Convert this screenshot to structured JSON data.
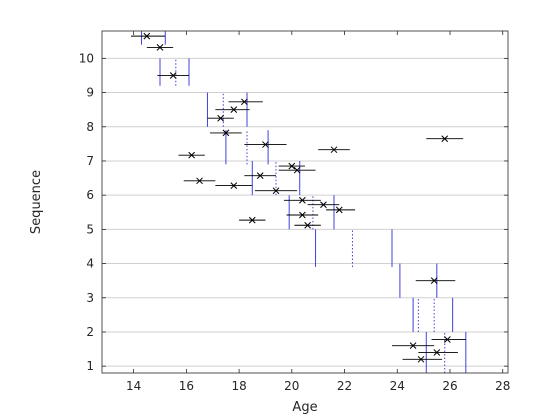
{
  "chart_data": {
    "type": "scatter",
    "xlabel": "Age",
    "ylabel": "Sequence",
    "xlim": [
      12.8,
      28.2
    ],
    "ylim": [
      0.8,
      10.8
    ],
    "xticks": [
      "14",
      "16",
      "18",
      "20",
      "22",
      "24",
      "26",
      "28"
    ],
    "yticks": [
      "1",
      "2",
      "3",
      "4",
      "5",
      "6",
      "7",
      "8",
      "9",
      "10"
    ],
    "grid": "horizontal",
    "colors": {
      "points": "#000000",
      "intervals": "#4040dd",
      "grid": "#d0d0d0",
      "axis": "#262626"
    },
    "points": [
      {
        "x": 14.5,
        "y": 10.65,
        "xerr": [
          13.9,
          15.2
        ]
      },
      {
        "x": 15.0,
        "y": 10.32,
        "xerr": [
          14.5,
          15.5
        ]
      },
      {
        "x": 15.5,
        "y": 9.5,
        "xerr": [
          14.9,
          16.1
        ]
      },
      {
        "x": 18.2,
        "y": 8.73,
        "xerr": [
          17.6,
          18.9
        ]
      },
      {
        "x": 17.8,
        "y": 8.5,
        "xerr": [
          17.1,
          18.4
        ]
      },
      {
        "x": 17.3,
        "y": 8.25,
        "xerr": [
          16.8,
          17.8
        ]
      },
      {
        "x": 25.8,
        "y": 7.65,
        "xerr": [
          25.1,
          26.5
        ]
      },
      {
        "x": 17.5,
        "y": 7.82,
        "xerr": [
          16.9,
          18.1
        ]
      },
      {
        "x": 19.0,
        "y": 7.48,
        "xerr": [
          18.2,
          19.8
        ]
      },
      {
        "x": 21.6,
        "y": 7.33,
        "xerr": [
          21.0,
          22.2
        ]
      },
      {
        "x": 16.2,
        "y": 7.17,
        "xerr": [
          15.7,
          16.7
        ]
      },
      {
        "x": 20.0,
        "y": 6.85,
        "xerr": [
          19.5,
          20.5
        ]
      },
      {
        "x": 20.2,
        "y": 6.73,
        "xerr": [
          19.5,
          20.9
        ]
      },
      {
        "x": 18.8,
        "y": 6.57,
        "xerr": [
          18.2,
          19.4
        ]
      },
      {
        "x": 16.5,
        "y": 6.42,
        "xerr": [
          15.9,
          17.1
        ]
      },
      {
        "x": 17.8,
        "y": 6.28,
        "xerr": [
          17.1,
          18.5
        ]
      },
      {
        "x": 19.4,
        "y": 6.13,
        "xerr": [
          18.6,
          20.2
        ]
      },
      {
        "x": 20.4,
        "y": 5.85,
        "xerr": [
          19.7,
          21.1
        ]
      },
      {
        "x": 21.2,
        "y": 5.72,
        "xerr": [
          20.6,
          21.8
        ]
      },
      {
        "x": 21.8,
        "y": 5.57,
        "xerr": [
          21.3,
          22.4
        ]
      },
      {
        "x": 20.4,
        "y": 5.42,
        "xerr": [
          19.8,
          21.0
        ]
      },
      {
        "x": 18.5,
        "y": 5.27,
        "xerr": [
          18.0,
          19.0
        ]
      },
      {
        "x": 20.6,
        "y": 5.12,
        "xerr": [
          20.1,
          21.1
        ]
      },
      {
        "x": 25.4,
        "y": 3.5,
        "xerr": [
          24.7,
          26.2
        ]
      },
      {
        "x": 25.9,
        "y": 1.78,
        "xerr": [
          25.3,
          26.6
        ]
      },
      {
        "x": 24.6,
        "y": 1.6,
        "xerr": [
          23.8,
          25.4
        ]
      },
      {
        "x": 25.5,
        "y": 1.4,
        "xerr": [
          24.8,
          26.3
        ]
      },
      {
        "x": 24.9,
        "y": 1.2,
        "xerr": [
          24.2,
          25.7
        ]
      }
    ],
    "bounds": [
      {
        "x": 14.3,
        "y": [
          10.4,
          10.8
        ],
        "style": "solid"
      },
      {
        "x": 15.2,
        "y": [
          10.4,
          10.8
        ],
        "style": "solid"
      },
      {
        "x": 15.0,
        "y": [
          9.2,
          10.0
        ],
        "style": "solid"
      },
      {
        "x": 16.1,
        "y": [
          9.2,
          10.0
        ],
        "style": "solid"
      },
      {
        "x": 15.6,
        "y": [
          9.2,
          10.0
        ],
        "style": "dotted"
      },
      {
        "x": 16.8,
        "y": [
          8.0,
          9.0
        ],
        "style": "solid"
      },
      {
        "x": 18.3,
        "y": [
          8.0,
          9.0
        ],
        "style": "solid"
      },
      {
        "x": 17.4,
        "y": [
          8.0,
          9.0
        ],
        "style": "dotted"
      },
      {
        "x": 17.5,
        "y": [
          6.9,
          7.9
        ],
        "style": "solid"
      },
      {
        "x": 19.1,
        "y": [
          6.9,
          7.9
        ],
        "style": "solid"
      },
      {
        "x": 18.3,
        "y": [
          6.9,
          7.9
        ],
        "style": "dotted"
      },
      {
        "x": 18.5,
        "y": [
          6.0,
          7.0
        ],
        "style": "solid"
      },
      {
        "x": 20.3,
        "y": [
          6.0,
          7.0
        ],
        "style": "solid"
      },
      {
        "x": 19.4,
        "y": [
          6.0,
          7.0
        ],
        "style": "dotted"
      },
      {
        "x": 19.9,
        "y": [
          5.0,
          6.0
        ],
        "style": "solid"
      },
      {
        "x": 21.6,
        "y": [
          5.0,
          6.0
        ],
        "style": "solid"
      },
      {
        "x": 20.8,
        "y": [
          5.0,
          6.0
        ],
        "style": "dotted"
      },
      {
        "x": 20.9,
        "y": [
          3.9,
          5.0
        ],
        "style": "solid"
      },
      {
        "x": 23.8,
        "y": [
          3.9,
          5.0
        ],
        "style": "solid"
      },
      {
        "x": 22.3,
        "y": [
          3.9,
          5.0
        ],
        "style": "dotted"
      },
      {
        "x": 24.1,
        "y": [
          3.0,
          4.0
        ],
        "style": "solid"
      },
      {
        "x": 25.5,
        "y": [
          3.0,
          4.0
        ],
        "style": "solid"
      },
      {
        "x": 24.8,
        "y": [
          2.0,
          3.0
        ],
        "style": "dotted"
      },
      {
        "x": 24.6,
        "y": [
          2.0,
          3.0
        ],
        "style": "solid"
      },
      {
        "x": 26.1,
        "y": [
          2.0,
          3.0
        ],
        "style": "solid"
      },
      {
        "x": 25.4,
        "y": [
          2.0,
          3.0
        ],
        "style": "dotted"
      },
      {
        "x": 25.1,
        "y": [
          0.8,
          2.0
        ],
        "style": "solid"
      },
      {
        "x": 26.6,
        "y": [
          0.8,
          2.0
        ],
        "style": "solid"
      },
      {
        "x": 25.8,
        "y": [
          0.8,
          2.0
        ],
        "style": "dotted"
      }
    ]
  }
}
